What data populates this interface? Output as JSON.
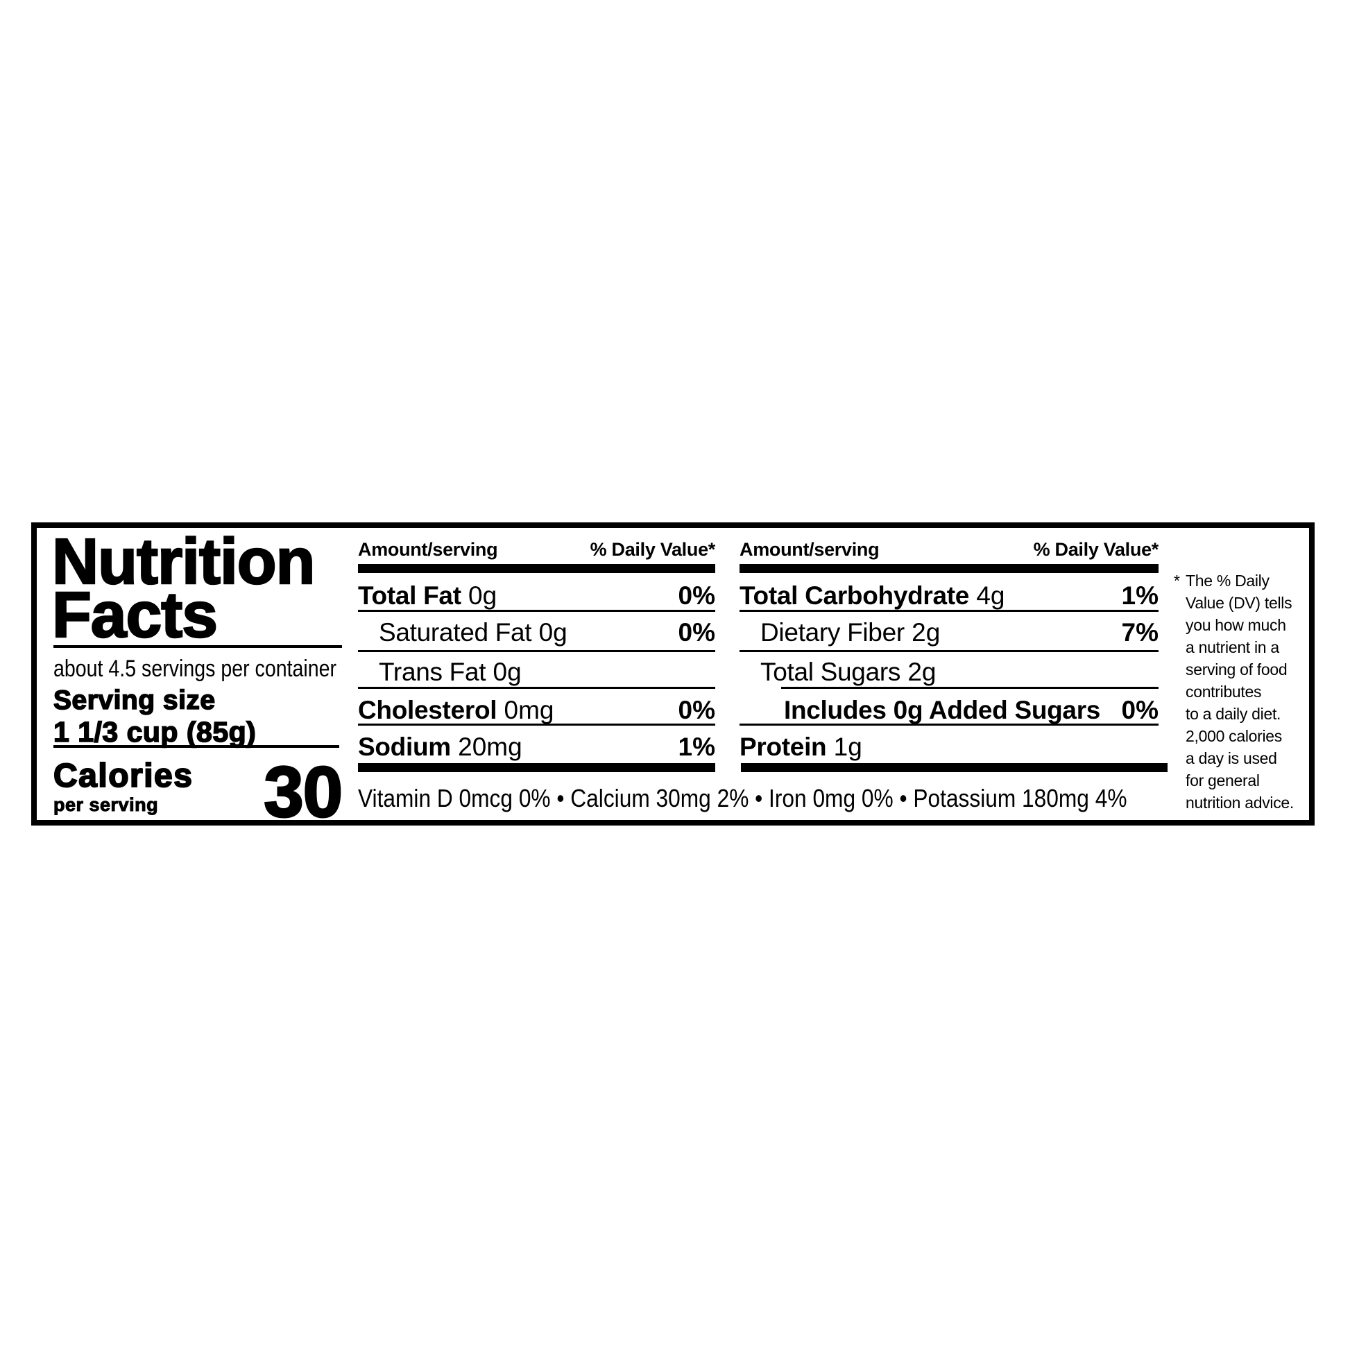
{
  "nutrition_label": {
    "title": "Nutrition\nFacts",
    "servings_per_container": "about 4.5 servings per container",
    "serving_size": {
      "label": "Serving size",
      "value": "1 1/3 cup (85g)"
    },
    "calories": {
      "label": "Calories",
      "sublabel": "per serving",
      "value": "30"
    },
    "column1": {
      "header_amount": "Amount/serving",
      "header_dv": "% Daily Value*",
      "rows": [
        {
          "name": "Total Fat",
          "amount": "0g",
          "dv": "0%"
        },
        {
          "name": "Saturated Fat",
          "amount": "0g",
          "dv": "0%"
        },
        {
          "name": "Trans Fat",
          "amount": "0g",
          "dv": ""
        },
        {
          "name": "Cholesterol",
          "amount": "0mg",
          "dv": "0%"
        },
        {
          "name": "Sodium",
          "amount": "20mg",
          "dv": "1%"
        }
      ]
    },
    "column2": {
      "header_amount": "Amount/serving",
      "header_dv": "% Daily Value*",
      "rows": [
        {
          "name": "Total Carbohydrate",
          "amount": "4g",
          "dv": "1%"
        },
        {
          "name": "Dietary Fiber",
          "amount": "2g",
          "dv": "7%"
        },
        {
          "name": "Total Sugars",
          "amount": "2g",
          "dv": ""
        },
        {
          "name": "Includes 0g Added Sugars",
          "amount": "",
          "dv": "0%"
        },
        {
          "name": "Protein",
          "amount": "1g",
          "dv": ""
        }
      ]
    },
    "micronutrients": "Vitamin D 0mcg 0% • Calcium 30mg 2% • Iron 0mg 0% • Potassium 180mg 4%",
    "footnote": {
      "marker": "*",
      "text": "The % Daily\nValue (DV) tells\nyou how much\na nutrient in a\nserving of food\ncontributes\nto a daily diet.\n2,000 calories\na day is used\nfor general\nnutrition advice."
    },
    "colors": {
      "ink": "#000000",
      "background": "#ffffff"
    }
  }
}
